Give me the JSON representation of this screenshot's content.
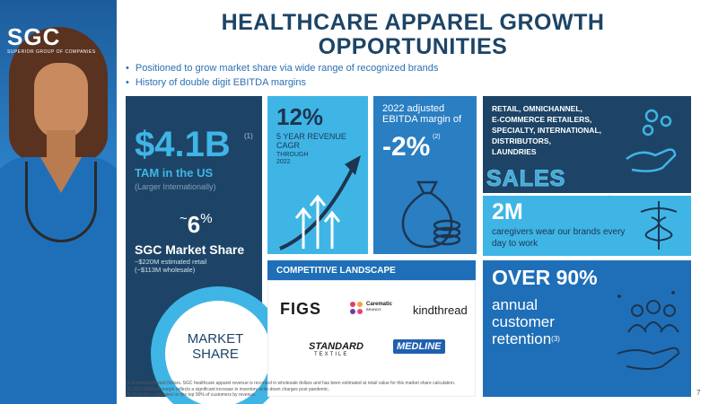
{
  "brand": {
    "logo_text": "SGC",
    "logo_subtitle": "SUPERIOR GROUP OF COMPANIES"
  },
  "title": "HEALTHCARE APPAREL GROWTH OPPORTUNITIES",
  "bullets": [
    "Positioned to grow market share via wide range of recognized brands",
    "History of double digit EBITDA margins"
  ],
  "tam": {
    "value": "$4.1B",
    "footnote_ref": "(1)",
    "label": "TAM in the US",
    "sublabel": "(Larger Internationally)",
    "share_prefix": "~",
    "share_value": "6",
    "share_symbol": "%",
    "share_label": "SGC Market Share",
    "estimate_line1": "~$220M estimated retail",
    "estimate_line2": "(~$113M wholesale)",
    "donut_label_line1": "MARKET",
    "donut_label_line2": "SHARE",
    "market_share_percent": 6
  },
  "cagr": {
    "value": "12%",
    "label_line1": "5 YEAR REVENUE",
    "label_line2": "CAGR",
    "through_line1": "THROUGH",
    "through_line2": "2022"
  },
  "ebitda": {
    "label_line1": "2022 adjusted",
    "label_line2": "EBITDA margin of",
    "value": "-2%",
    "footnote_ref": "(2)"
  },
  "sales_channels": {
    "label_lines": [
      "RETAIL, OMNICHANNEL,",
      "E-COMMERCE RETAILERS,",
      "SPECIALTY, INTERNATIONAL,",
      "DISTRIBUTORS,",
      "LAUNDRIES"
    ],
    "watermark": "SALES CHANNELS"
  },
  "caregivers": {
    "value": "2M",
    "label": "caregivers wear our brands every day to work"
  },
  "competitive": {
    "header": "COMPETITIVE LANDSCAPE",
    "logos": {
      "figs": "FIGS",
      "carematic": "Carematic",
      "carematic_sub": "BRANDS",
      "kindthread": "kindthread",
      "standard": "STANDARD",
      "standard_sub": "TEXTILE",
      "medline": "MEDLINE"
    }
  },
  "retention": {
    "value": "OVER 90%",
    "label_line1": "annual",
    "label_line2": "customer",
    "label_line3": "retention",
    "footnote_ref": "(3)"
  },
  "footnotes": [
    "(1) Estimated Retail Dollars. SGC healthcare apparel revenue is recorded in wholesale dollars and has been estimated at retail value for this market share calculation.",
    "(2) 2022 EBITDA margin reflects a significant increase in inventory write-down charges post pandemic.",
    "(3) Retention calculated on the top 90% of customers by revenue."
  ],
  "page_number": "7",
  "colors": {
    "navy": "#1d4466",
    "sky": "#3fb5e6",
    "blue": "#1f6fb8"
  }
}
